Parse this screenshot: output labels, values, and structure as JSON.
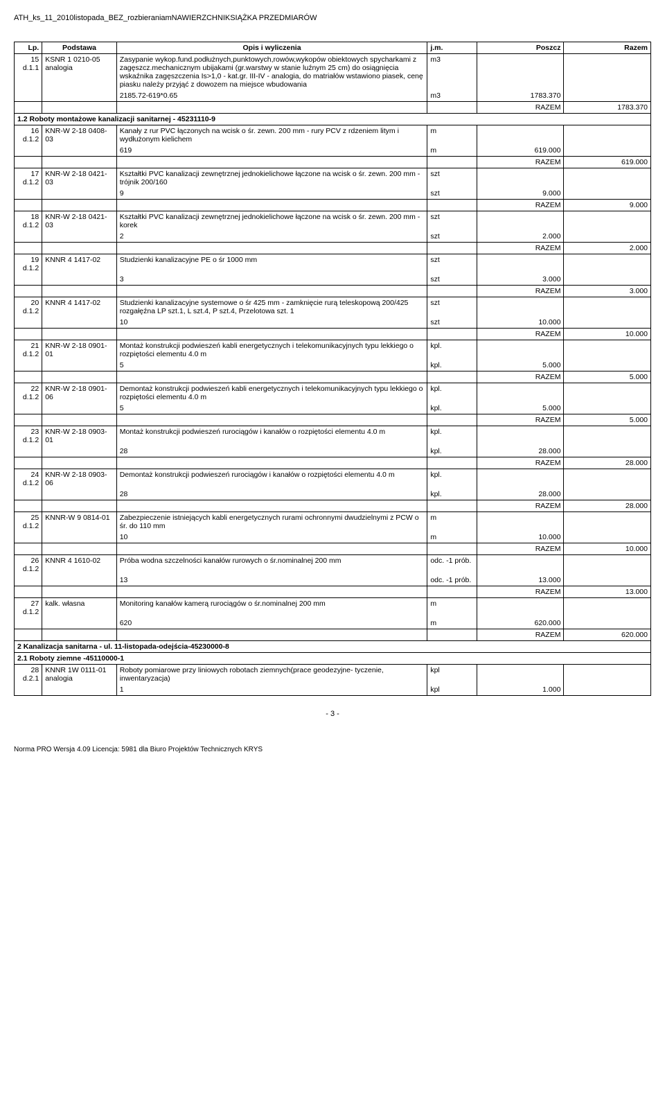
{
  "doc_header": "ATH_ks_11_2010listopada_BEZ_rozbieraniamNAWIERZCHNIKSIĄŻKA PRZEDMIARÓW",
  "table": {
    "headers": {
      "lp": "Lp.",
      "podstawa": "Podstawa",
      "opis": "Opis i wyliczenia",
      "jm": "j.m.",
      "poszcz": "Poszcz",
      "razem": "Razem"
    }
  },
  "rows": [
    {
      "lp": "15",
      "lp2": "d.1.1",
      "podstawa": "KSNR 1 0210-05 analogia",
      "opis": "Zasypanie wykop.fund.podłużnych,punktowych,rowów,wykopów obiektowych spycharkami z zagęszcz.mechanicznym ubijakami (gr.warstwy w stanie luźnym 25 cm) do osiągnięcia wskaźnika zagęszczenia Is>1,0 - kat.gr. III-IV - analogia, do matriałów wstawiono piasek, cenę piasku należy przyjąć z dowozem na miejsce wbudowania",
      "jm": "m3",
      "calc": "2185.72-619*0.65",
      "calc_jm": "m3",
      "calc_val": "1783.370",
      "razem_lbl": "RAZEM",
      "razem_val": "1783.370"
    },
    {
      "section": "1.2 Roboty montażowe kanalizacji sanitarnej - 45231110-9"
    },
    {
      "lp": "16",
      "lp2": "d.1.2",
      "podstawa": "KNR-W 2-18 0408-03",
      "opis": "Kanały z rur PVC łączonych na wcisk o śr. zewn. 200 mm - rury PCV z rdzeniem litym i wydłużonym kielichem",
      "jm": "m",
      "calc": "619",
      "calc_jm": "m",
      "calc_val": "619.000",
      "razem_lbl": "RAZEM",
      "razem_val": "619.000"
    },
    {
      "lp": "17",
      "lp2": "d.1.2",
      "podstawa": "KNR-W 2-18 0421-03",
      "opis": "Kształtki PVC kanalizacji zewnętrznej jednokielichowe łączone na wcisk o śr. zewn. 200 mm - trójnik 200/160",
      "jm": "szt",
      "calc": "9",
      "calc_jm": "szt",
      "calc_val": "9.000",
      "razem_lbl": "RAZEM",
      "razem_val": "9.000"
    },
    {
      "lp": "18",
      "lp2": "d.1.2",
      "podstawa": "KNR-W 2-18 0421-03",
      "opis": "Kształtki PVC kanalizacji zewnętrznej jednokielichowe łączone na wcisk o śr. zewn. 200 mm - korek",
      "jm": "szt",
      "calc": "2",
      "calc_jm": "szt",
      "calc_val": "2.000",
      "razem_lbl": "RAZEM",
      "razem_val": "2.000"
    },
    {
      "lp": "19",
      "lp2": "d.1.2",
      "podstawa": "KNNR 4 1417-02",
      "opis": "Studzienki kanalizacyjne PE o śr 1000 mm",
      "jm": "szt",
      "calc": "3",
      "calc_jm": "szt",
      "calc_val": "3.000",
      "razem_lbl": "RAZEM",
      "razem_val": "3.000"
    },
    {
      "lp": "20",
      "lp2": "d.1.2",
      "podstawa": "KNNR 4 1417-02",
      "opis": "Studzienki kanalizacyjne systemowe  o śr 425 mm - zamknięcie rurą teleskopową 200/425 rozgałęźna LP szt.1, L szt.4, P szt.4, Przelotowa szt. 1",
      "jm": "szt",
      "calc": "10",
      "calc_jm": "szt",
      "calc_val": "10.000",
      "razem_lbl": "RAZEM",
      "razem_val": "10.000"
    },
    {
      "lp": "21",
      "lp2": "d.1.2",
      "podstawa": "KNR-W 2-18 0901-01",
      "opis": "Montaż konstrukcji podwieszeń kabli energetycznych i telekomunikacyjnych typu lekkiego o rozpiętości elementu 4.0 m",
      "jm": "kpl.",
      "calc": "5",
      "calc_jm": "kpl.",
      "calc_val": "5.000",
      "razem_lbl": "RAZEM",
      "razem_val": "5.000"
    },
    {
      "lp": "22",
      "lp2": "d.1.2",
      "podstawa": "KNR-W 2-18 0901-06",
      "opis": "Demontaż konstrukcji podwieszeń kabli energetycznych i telekomunikacyjnych typu lekkiego o rozpiętości elementu 4.0 m",
      "jm": "kpl.",
      "calc": "5",
      "calc_jm": "kpl.",
      "calc_val": "5.000",
      "razem_lbl": "RAZEM",
      "razem_val": "5.000"
    },
    {
      "lp": "23",
      "lp2": "d.1.2",
      "podstawa": "KNR-W 2-18 0903-01",
      "opis": "Montaż konstrukcji podwieszeń rurociągów i kanałów o rozpiętości elementu 4.0 m",
      "jm": "kpl.",
      "calc": "28",
      "calc_jm": "kpl.",
      "calc_val": "28.000",
      "razem_lbl": "RAZEM",
      "razem_val": "28.000"
    },
    {
      "lp": "24",
      "lp2": "d.1.2",
      "podstawa": "KNR-W 2-18 0903-06",
      "opis": "Demontaż konstrukcji podwieszeń rurociągów i kanałów o rozpiętości elementu 4.0 m",
      "jm": "kpl.",
      "calc": "28",
      "calc_jm": "kpl.",
      "calc_val": "28.000",
      "razem_lbl": "RAZEM",
      "razem_val": "28.000"
    },
    {
      "lp": "25",
      "lp2": "d.1.2",
      "podstawa": "KNNR-W 9 0814-01",
      "opis": "Zabezpieczenie istniejących kabli energetycznych rurami ochronnymi dwudzielnymi z PCW o śr. do 110 mm",
      "jm": "m",
      "calc": "10",
      "calc_jm": "m",
      "calc_val": "10.000",
      "razem_lbl": "RAZEM",
      "razem_val": "10.000"
    },
    {
      "lp": "26",
      "lp2": "d.1.2",
      "podstawa": "KNNR 4 1610-02",
      "opis": "Próba wodna szczelności kanałów rurowych o śr.nominalnej 200 mm",
      "jm": "odc. -1 prób.",
      "calc": "13",
      "calc_jm": "odc. -1 prób.",
      "calc_val": "13.000",
      "razem_lbl": "RAZEM",
      "razem_val": "13.000"
    },
    {
      "lp": "27",
      "lp2": "d.1.2",
      "podstawa": "kalk. własna",
      "opis": "Monitoring kanałów kamerą rurociągów o śr.nominalnej 200 mm",
      "jm": "m",
      "calc": "620",
      "calc_jm": "m",
      "calc_val": "620.000",
      "razem_lbl": "RAZEM",
      "razem_val": "620.000"
    },
    {
      "section": "2 Kanalizacja sanitarna - ul. 11-listopada-odejścia-45230000-8"
    },
    {
      "section": "2.1 Roboty ziemne -45110000-1"
    },
    {
      "lp": "28",
      "lp2": "d.2.1",
      "podstawa": "KNNR 1W 0111-01 analogia",
      "opis": "Roboty pomiarowe przy liniowych robotach ziemnych(prace geodezyjne- tyczenie, inwentaryzacja)",
      "jm": "kpl",
      "calc": "1",
      "calc_jm": "kpl",
      "calc_val": "1.000",
      "razem_lbl": "",
      "razem_val": ""
    }
  ],
  "page_num": "- 3 -",
  "footer": "Norma PRO Wersja 4.09 Licencja: 5981 dla Biuro Projektów Technicznych KRYS"
}
